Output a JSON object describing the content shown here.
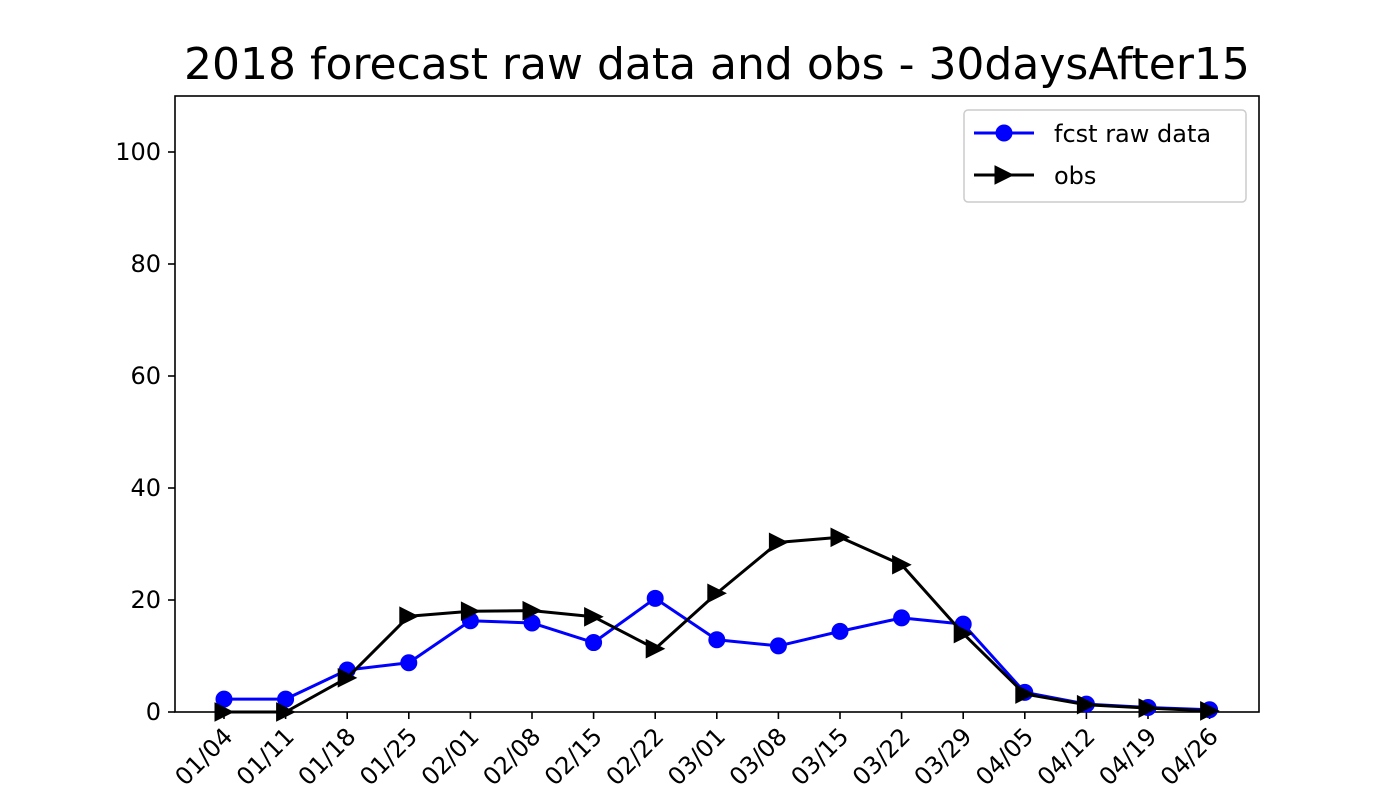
{
  "chart_data": {
    "type": "line",
    "title": "2018 forecast raw data and obs - 30daysAfter15",
    "xlabel": "",
    "ylabel": "",
    "categories": [
      "01/04",
      "01/11",
      "01/18",
      "01/25",
      "02/01",
      "02/08",
      "02/15",
      "02/22",
      "03/01",
      "03/08",
      "03/15",
      "03/22",
      "03/29",
      "04/05",
      "04/12",
      "04/19",
      "04/26"
    ],
    "ylim": [
      0,
      110
    ],
    "yticks": [
      0,
      20,
      40,
      60,
      80,
      100
    ],
    "grid": false,
    "legend_position": "top-right",
    "series": [
      {
        "name": "fcst raw data",
        "color": "#0000ff",
        "marker": "circle",
        "values": [
          2.3,
          2.3,
          7.5,
          8.8,
          16.3,
          15.9,
          12.4,
          20.3,
          12.9,
          11.8,
          14.4,
          16.8,
          15.7,
          3.5,
          1.4,
          0.8,
          0.4
        ]
      },
      {
        "name": "obs",
        "color": "#000000",
        "marker": "triangle-right",
        "values": [
          0.0,
          0.0,
          6.1,
          17.1,
          18.0,
          18.1,
          17.0,
          11.3,
          21.2,
          30.3,
          31.2,
          26.3,
          14.0,
          3.2,
          1.3,
          0.7,
          0.2
        ]
      }
    ]
  }
}
